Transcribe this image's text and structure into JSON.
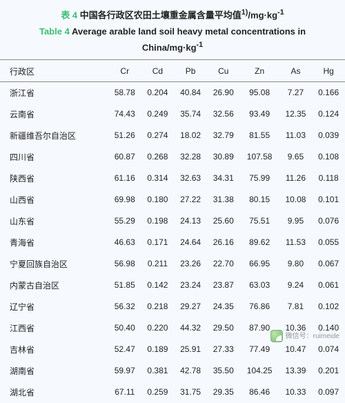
{
  "caption": {
    "table_label_zh": "表 4",
    "table_label_en": "Table 4",
    "title_zh_rest": " 中国各行政区农田土壤重金属含量平均值",
    "sup": "1)",
    "unit": "/mg·kg",
    "unit_exp": "-1",
    "title_en_rest": " Average arable land soil heavy metal concentrations in China/mg·kg"
  },
  "table": {
    "headers": [
      "行政区",
      "Cr",
      "Cd",
      "Pb",
      "Cu",
      "Zn",
      "As",
      "Hg"
    ],
    "rows": [
      [
        "浙江省",
        "58.78",
        "0.204",
        "40.84",
        "26.90",
        "95.08",
        "7.27",
        "0.166"
      ],
      [
        "云南省",
        "74.43",
        "0.249",
        "35.74",
        "32.56",
        "93.49",
        "12.35",
        "0.124"
      ],
      [
        "新疆维吾尔自治区",
        "51.26",
        "0.274",
        "18.02",
        "32.79",
        "81.55",
        "11.03",
        "0.039"
      ],
      [
        "四川省",
        "60.87",
        "0.268",
        "32.28",
        "30.89",
        "107.58",
        "9.65",
        "0.108"
      ],
      [
        "陕西省",
        "61.16",
        "0.314",
        "32.63",
        "34.31",
        "75.99",
        "11.26",
        "0.118"
      ],
      [
        "山西省",
        "69.98",
        "0.180",
        "27.22",
        "31.38",
        "80.15",
        "10.08",
        "0.101"
      ],
      [
        "山东省",
        "55.29",
        "0.198",
        "24.13",
        "25.60",
        "75.51",
        "9.95",
        "0.076"
      ],
      [
        "青海省",
        "46.63",
        "0.171",
        "24.64",
        "26.16",
        "89.62",
        "11.53",
        "0.055"
      ],
      [
        "宁夏回族自治区",
        "56.98",
        "0.211",
        "23.26",
        "22.70",
        "66.95",
        "9.80",
        "0.067"
      ],
      [
        "内蒙古自治区",
        "51.85",
        "0.142",
        "23.24",
        "23.87",
        "63.03",
        "9.24",
        "0.061"
      ],
      [
        "辽宁省",
        "56.32",
        "0.218",
        "29.27",
        "24.35",
        "76.86",
        "7.81",
        "0.102"
      ],
      [
        "江西省",
        "50.40",
        "0.220",
        "44.32",
        "29.50",
        "87.90",
        "10.36",
        "0.140"
      ],
      [
        "吉林省",
        "52.47",
        "0.189",
        "25.91",
        "27.33",
        "77.49",
        "10.47",
        "0.074"
      ],
      [
        "湖南省",
        "59.97",
        "0.381",
        "42.78",
        "35.50",
        "104.25",
        "13.39",
        "0.201"
      ],
      [
        "湖北省",
        "67.11",
        "0.259",
        "31.75",
        "29.35",
        "86.46",
        "10.33",
        "0.097"
      ]
    ]
  },
  "watermark": {
    "line1": "微信号：ruimeide"
  }
}
